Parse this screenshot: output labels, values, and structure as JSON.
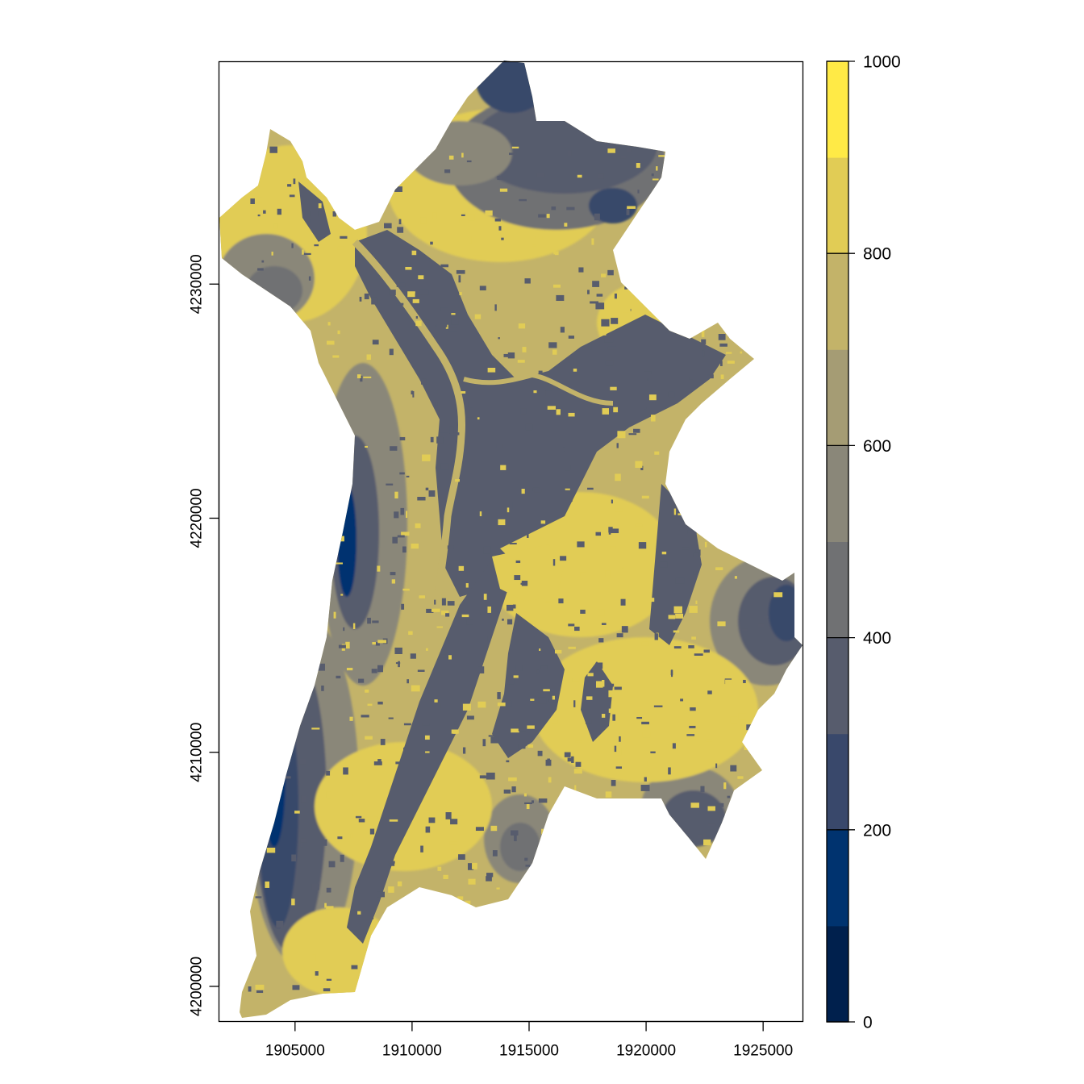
{
  "map": {
    "x_ticks": [
      {
        "value": 1905000,
        "label": "1905000"
      },
      {
        "value": 1910000,
        "label": "1910000"
      },
      {
        "value": 1915000,
        "label": "1915000"
      },
      {
        "value": 1920000,
        "label": "1920000"
      },
      {
        "value": 1925000,
        "label": "1925000"
      }
    ],
    "y_ticks": [
      {
        "value": 4200000,
        "label": "4200000"
      },
      {
        "value": 4210000,
        "label": "4210000"
      },
      {
        "value": 4220000,
        "label": "4220000"
      },
      {
        "value": 4230000,
        "label": "4230000"
      }
    ],
    "xlim": [
      1901750,
      1926700
    ],
    "ylim": [
      4198500,
      4239500
    ]
  },
  "legend": {
    "range": [
      0,
      1000
    ],
    "breaks": [
      0,
      100,
      200,
      300,
      400,
      500,
      600,
      700,
      800,
      900,
      1000
    ],
    "colors": [
      "#00204d",
      "#00336f",
      "#39486b",
      "#575c6d",
      "#707173",
      "#8a8779",
      "#a59c74",
      "#c3b369",
      "#e1cc55",
      "#ffea46"
    ],
    "ticks": [
      {
        "value": 0,
        "label": "0"
      },
      {
        "value": 200,
        "label": "200"
      },
      {
        "value": 400,
        "label": "400"
      },
      {
        "value": 600,
        "label": "600"
      },
      {
        "value": 800,
        "label": "800"
      },
      {
        "value": 1000,
        "label": "1000"
      }
    ]
  }
}
